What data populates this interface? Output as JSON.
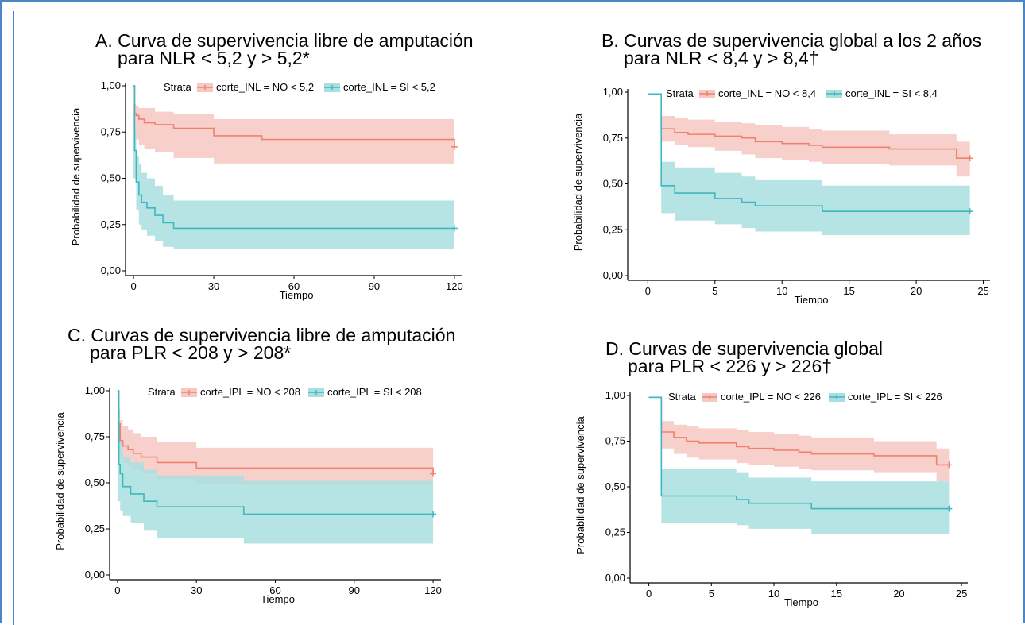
{
  "panels": [
    {
      "letter": "A.",
      "title_line1": "Curva de supervivencia libre de amputación",
      "title_line2": "para NLR < 5,2 y > 5,2*",
      "legend_title": "Strata",
      "chart_data": {
        "type": "line",
        "xlabel": "Tiempo",
        "ylabel": "Probabilidad de supervivencia",
        "xlim": [
          -3,
          123
        ],
        "ylim": [
          0,
          1
        ],
        "xticks": [
          0,
          30,
          60,
          90,
          120
        ],
        "yticks": [
          "0,00",
          "0,25",
          "0,50",
          "0,75",
          "1,00"
        ],
        "series": [
          {
            "name": "corte_INL = NO < 5,2",
            "color": "#f08070",
            "band": "#f6c8c2",
            "x": [
              0,
              0.4,
              1,
              2,
              4,
              8,
              15,
              30,
              48,
              120
            ],
            "y": [
              1.0,
              0.85,
              0.84,
              0.82,
              0.8,
              0.79,
              0.77,
              0.73,
              0.71,
              0.67
            ],
            "lower": [
              0.74,
              0.73,
              0.71,
              0.68,
              0.66,
              0.64,
              0.61,
              0.58,
              0.58,
              0.58
            ],
            "upper": [
              0.9,
              0.9,
              0.89,
              0.88,
              0.88,
              0.86,
              0.85,
              0.82,
              0.82,
              0.82
            ]
          },
          {
            "name": "corte_INL = SI < 5,2",
            "color": "#3db8bf",
            "band": "#a9dfe1",
            "x": [
              0,
              0.4,
              1,
              2,
              3,
              5,
              8,
              11,
              15,
              120
            ],
            "y": [
              1.0,
              0.65,
              0.48,
              0.41,
              0.37,
              0.34,
              0.3,
              0.26,
              0.23,
              0.23
            ],
            "lower": [
              0.5,
              0.5,
              0.33,
              0.25,
              0.22,
              0.19,
              0.16,
              0.13,
              0.12,
              0.12
            ],
            "upper": [
              0.86,
              0.75,
              0.62,
              0.58,
              0.53,
              0.5,
              0.46,
              0.41,
              0.38,
              0.38
            ]
          }
        ]
      }
    },
    {
      "letter": "B.",
      "title_line1": "Curvas de supervivencia global a los 2 años",
      "title_line2": "para NLR < 8,4 y > 8,4†",
      "legend_title": "Strata",
      "chart_data": {
        "type": "line",
        "xlabel": "Tiempo",
        "ylabel": "Probabilidad de supervivencia",
        "xlim": [
          -1.5,
          25.5
        ],
        "ylim": [
          0,
          1
        ],
        "xticks": [
          0,
          5,
          10,
          15,
          20,
          25
        ],
        "yticks": [
          "0,00",
          "0,25",
          "0,50",
          "0,75",
          "1,00"
        ],
        "series": [
          {
            "name": "corte_INL = NO < 8,4",
            "color": "#f08070",
            "band": "#f6c8c2",
            "x": [
              0,
              1,
              2,
              3,
              5,
              7,
              8,
              10,
              12,
              13,
              15,
              18,
              23,
              24
            ],
            "y": [
              0.99,
              0.8,
              0.78,
              0.77,
              0.76,
              0.75,
              0.73,
              0.72,
              0.71,
              0.7,
              0.7,
              0.69,
              0.64,
              0.64
            ],
            "lower": [
              0.99,
              0.73,
              0.71,
              0.7,
              0.68,
              0.66,
              0.64,
              0.63,
              0.62,
              0.61,
              0.61,
              0.6,
              0.54,
              0.54
            ],
            "upper": [
              0.99,
              0.87,
              0.86,
              0.85,
              0.84,
              0.83,
              0.82,
              0.81,
              0.8,
              0.79,
              0.79,
              0.77,
              0.73,
              0.73
            ]
          },
          {
            "name": "corte_INL = SI < 8,4",
            "color": "#3db8bf",
            "band": "#a9dfe1",
            "x": [
              0,
              1,
              2,
              5,
              7,
              8,
              13,
              24
            ],
            "y": [
              0.99,
              0.49,
              0.45,
              0.42,
              0.4,
              0.38,
              0.35,
              0.35
            ],
            "lower": [
              0.99,
              0.34,
              0.3,
              0.28,
              0.26,
              0.24,
              0.22,
              0.22
            ],
            "upper": [
              0.99,
              0.62,
              0.59,
              0.56,
              0.54,
              0.52,
              0.49,
              0.49
            ]
          }
        ]
      }
    },
    {
      "letter": "C.",
      "title_line1": "Curvas de supervivencia libre de amputación",
      "title_line2": "para PLR < 208 y > 208*",
      "legend_title": "Strata",
      "chart_data": {
        "type": "line",
        "xlabel": "Tiempo",
        "ylabel": "Probabilidad de supervivencia",
        "xlim": [
          -3,
          123
        ],
        "ylim": [
          0,
          1
        ],
        "xticks": [
          0,
          30,
          60,
          90,
          120
        ],
        "yticks": [
          "0,00",
          "0,25",
          "0,50",
          "0,75",
          "1,00"
        ],
        "series": [
          {
            "name": "corte_IPL = NO < 208",
            "color": "#f08070",
            "band": "#f6c8c2",
            "x": [
              0,
              0.5,
              1,
              2,
              4,
              6,
              9,
              15,
              30,
              120
            ],
            "y": [
              1.0,
              0.82,
              0.73,
              0.7,
              0.68,
              0.66,
              0.64,
              0.61,
              0.58,
              0.55
            ],
            "lower": [
              0.68,
              0.68,
              0.63,
              0.61,
              0.59,
              0.57,
              0.55,
              0.52,
              0.49,
              0.46
            ],
            "upper": [
              0.9,
              0.9,
              0.84,
              0.81,
              0.79,
              0.77,
              0.75,
              0.72,
              0.69,
              0.69
            ]
          },
          {
            "name": "corte_IPL = SI < 208",
            "color": "#3db8bf",
            "band": "#a9dfe1",
            "x": [
              0,
              0.5,
              1,
              2,
              5,
              10,
              15,
              48,
              120
            ],
            "y": [
              1.0,
              0.6,
              0.55,
              0.48,
              0.44,
              0.4,
              0.37,
              0.33,
              0.33
            ],
            "lower": [
              0.4,
              0.4,
              0.35,
              0.32,
              0.28,
              0.24,
              0.2,
              0.17,
              0.17
            ],
            "upper": [
              0.9,
              0.79,
              0.72,
              0.64,
              0.61,
              0.57,
              0.54,
              0.51,
              0.51
            ]
          }
        ]
      }
    },
    {
      "letter": "D.",
      "title_line1": "Curvas de supervivencia global",
      "title_line2": "para PLR < 226 y > 226†",
      "legend_title": "Strata",
      "chart_data": {
        "type": "line",
        "xlabel": "Tiempo",
        "ylabel": "Probabilidad de supervivencia",
        "xlim": [
          -1.5,
          25.5
        ],
        "ylim": [
          0,
          1
        ],
        "xticks": [
          0,
          5,
          10,
          15,
          20,
          25
        ],
        "yticks": [
          "0,00",
          "0,25",
          "0,50",
          "0,75",
          "1,00"
        ],
        "series": [
          {
            "name": "corte_IPL = NO < 226",
            "color": "#f08070",
            "band": "#f6c8c2",
            "x": [
              0,
              1,
              2,
              3,
              4,
              7,
              8,
              10,
              12,
              13,
              18,
              23,
              24
            ],
            "y": [
              0.99,
              0.8,
              0.77,
              0.75,
              0.74,
              0.72,
              0.71,
              0.7,
              0.69,
              0.68,
              0.67,
              0.62,
              0.62
            ],
            "lower": [
              0.99,
              0.71,
              0.68,
              0.66,
              0.65,
              0.63,
              0.62,
              0.61,
              0.6,
              0.59,
              0.58,
              0.53,
              0.53
            ],
            "upper": [
              0.99,
              0.86,
              0.84,
              0.83,
              0.82,
              0.81,
              0.8,
              0.79,
              0.78,
              0.77,
              0.75,
              0.71,
              0.71
            ]
          },
          {
            "name": "corte_IPL = SI < 226",
            "color": "#3db8bf",
            "band": "#a9dfe1",
            "x": [
              0,
              1,
              7,
              8,
              13,
              24
            ],
            "y": [
              0.99,
              0.45,
              0.43,
              0.41,
              0.38,
              0.38
            ],
            "lower": [
              0.99,
              0.3,
              0.29,
              0.27,
              0.24,
              0.24
            ],
            "upper": [
              0.99,
              0.6,
              0.58,
              0.55,
              0.53,
              0.53
            ]
          }
        ]
      }
    }
  ]
}
